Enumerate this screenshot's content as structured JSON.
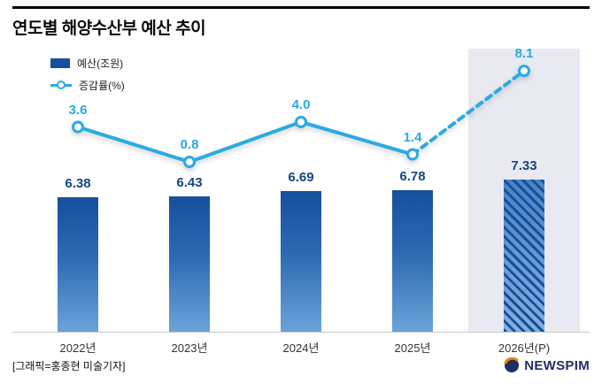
{
  "title": "연도별 해양수산부 예산 추이",
  "legend": {
    "bar_label": "예산(조원)",
    "line_label": "증감률(%)"
  },
  "footer": {
    "credit": "[그래픽=홍종현 미술기자]",
    "logo_text": "NEWSPIM"
  },
  "colors": {
    "bar_top": "#164f9e",
    "bar_bottom": "#6ba3d9",
    "bar_label": "#17457f",
    "line": "#29abe2",
    "band": "#e9e9f1",
    "axis": "#c8c8c8",
    "logo_navy": "#1e2f63",
    "logo_orange": "#f08300"
  },
  "chart_data": {
    "type": "bar",
    "categories": [
      "2022년",
      "2023년",
      "2024년",
      "2025년",
      "2026년(P)"
    ],
    "series": [
      {
        "name": "예산(조원)",
        "type": "bar",
        "values": [
          6.38,
          6.43,
          6.69,
          6.78,
          7.33
        ],
        "value_labels": [
          "6.38",
          "6.43",
          "6.69",
          "6.78",
          "7.33"
        ]
      },
      {
        "name": "증감률(%)",
        "type": "line",
        "values": [
          3.6,
          0.8,
          4.0,
          1.4,
          8.1
        ],
        "value_labels": [
          "3.6",
          "0.8",
          "4.0",
          "1.4",
          "8.1"
        ],
        "dashed_segment_from_index": 3
      }
    ],
    "highlight_category_index": 4,
    "legend_position": "top-left",
    "grid": false,
    "xlabel": "",
    "ylabel": ""
  }
}
